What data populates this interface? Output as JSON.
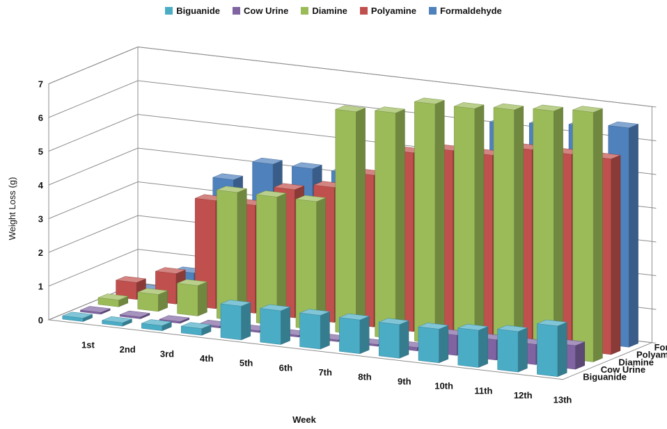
{
  "chart_data": {
    "type": "bar",
    "variant": "3d-column",
    "title": "",
    "xlabel": "Week",
    "ylabel": "Weight Loss (g)",
    "zlabel": "",
    "ylim": [
      0,
      7
    ],
    "y_ticks": [
      "0",
      "1",
      "2",
      "3",
      "4",
      "5",
      "6",
      "7"
    ],
    "grid": true,
    "legend_position": "top",
    "categories": [
      "1st",
      "2nd",
      "3rd",
      "4th",
      "5th",
      "6th",
      "7th",
      "8th",
      "9th",
      "10th",
      "11th",
      "12th",
      "13th"
    ],
    "series": [
      {
        "name": "Biguanide",
        "color": "#4bacc6",
        "values": [
          0.1,
          0.1,
          0.15,
          0.2,
          1.0,
          1.0,
          1.0,
          1.0,
          1.0,
          1.0,
          1.1,
          1.2,
          1.5
        ]
      },
      {
        "name": "Cow Urine",
        "color": "#8064a2",
        "values": [
          0.05,
          0.05,
          0.05,
          0.05,
          0.05,
          0.05,
          0.05,
          0.05,
          0.1,
          0.6,
          0.6,
          0.6,
          0.7
        ]
      },
      {
        "name": "Diamine",
        "color": "#9bbb59",
        "values": [
          0.2,
          0.5,
          0.9,
          3.8,
          3.8,
          3.8,
          6.6,
          6.7,
          7.1,
          7.1,
          7.2,
          7.3,
          7.4
        ]
      },
      {
        "name": "Polyamine",
        "color": "#c0504d",
        "values": [
          0.5,
          0.9,
          3.2,
          3.2,
          3.8,
          4.0,
          4.5,
          5.3,
          5.5,
          5.5,
          5.8,
          5.8,
          5.8
        ]
      },
      {
        "name": "Formaldehyde",
        "color": "#4f81bd",
        "values": [
          0.05,
          0.7,
          3.6,
          4.2,
          4.2,
          4.2,
          4.2,
          4.2,
          4.2,
          6.2,
          6.3,
          6.4,
          6.5
        ]
      }
    ]
  }
}
